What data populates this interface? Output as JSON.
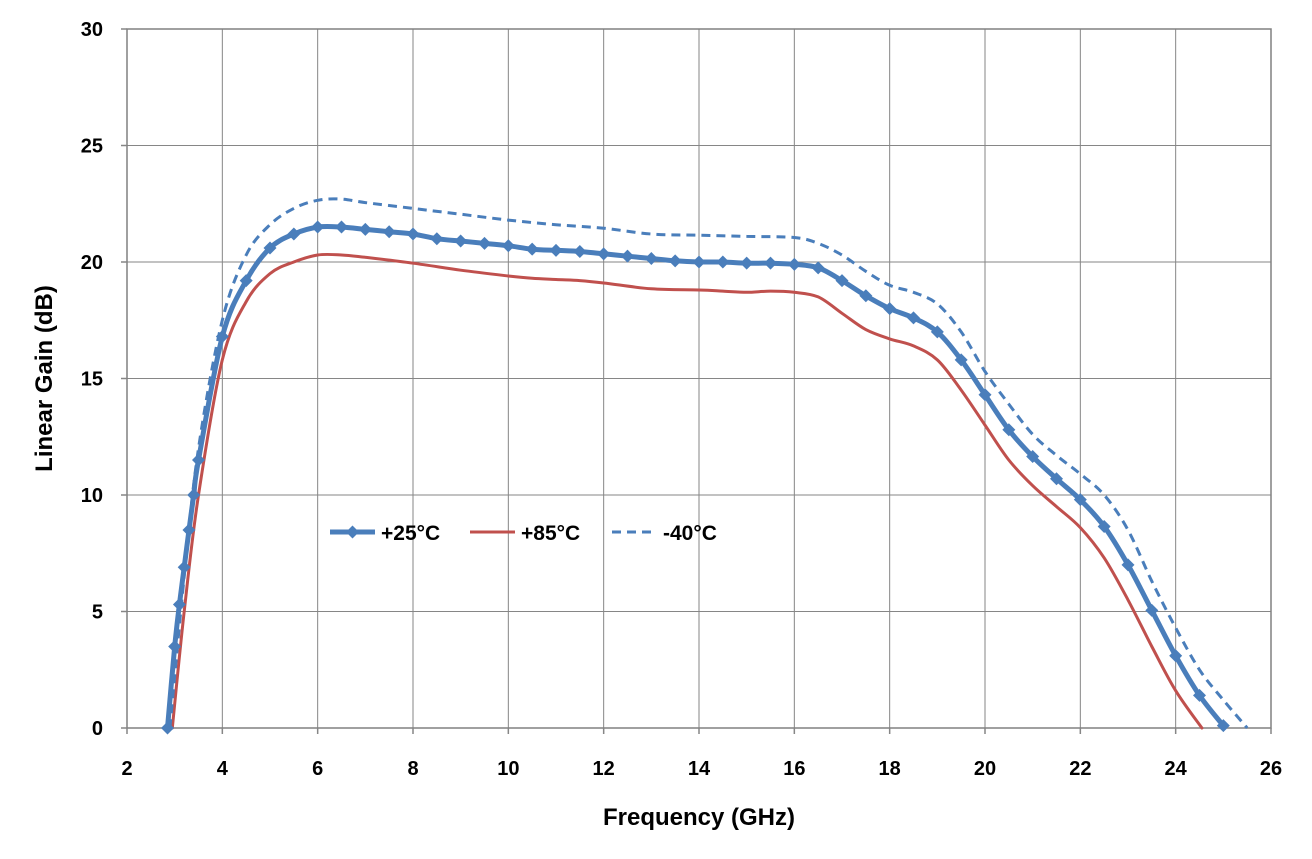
{
  "chart_data": {
    "type": "line",
    "title": "",
    "xlabel": "Frequency (GHz)",
    "ylabel": "Linear Gain (dB)",
    "xlim": [
      2,
      26
    ],
    "ylim": [
      0,
      30
    ],
    "xticks": [
      2,
      4,
      6,
      8,
      10,
      12,
      14,
      16,
      18,
      20,
      22,
      24,
      26
    ],
    "yticks": [
      0,
      5,
      10,
      15,
      20,
      25,
      30
    ],
    "grid": true,
    "legend_position": "center-left",
    "series": [
      {
        "name": "+25°C",
        "color": "#4A7EBB",
        "style": "solid-markers",
        "x": [
          2.85,
          3.0,
          3.1,
          3.2,
          3.3,
          3.4,
          3.5,
          4.0,
          4.5,
          5.0,
          5.5,
          6.0,
          6.5,
          7.0,
          7.5,
          8.0,
          8.5,
          9.0,
          9.5,
          10.0,
          10.5,
          11.0,
          11.5,
          12.0,
          12.5,
          13.0,
          13.5,
          14.0,
          14.5,
          15.0,
          15.5,
          16.0,
          16.5,
          17.0,
          17.5,
          18.0,
          18.5,
          19.0,
          19.5,
          20.0,
          20.5,
          21.0,
          21.5,
          22.0,
          22.5,
          23.0,
          23.5,
          24.0,
          24.5,
          25.0
        ],
        "y": [
          0.0,
          3.5,
          5.3,
          6.9,
          8.5,
          10.0,
          11.5,
          16.8,
          19.2,
          20.6,
          21.2,
          21.5,
          21.5,
          21.4,
          21.3,
          21.2,
          21.0,
          20.9,
          20.8,
          20.7,
          20.55,
          20.5,
          20.45,
          20.35,
          20.25,
          20.15,
          20.05,
          20.0,
          20.0,
          19.95,
          19.95,
          19.9,
          19.75,
          19.2,
          18.55,
          18.0,
          17.6,
          17.0,
          15.8,
          14.3,
          12.8,
          11.65,
          10.7,
          9.8,
          8.65,
          7.0,
          5.05,
          3.1,
          1.4,
          0.1
        ]
      },
      {
        "name": "+85°C",
        "color": "#C0504D",
        "style": "solid",
        "x": [
          2.95,
          3.2,
          3.5,
          4.0,
          4.5,
          5.0,
          5.5,
          6.0,
          6.5,
          7.0,
          8.0,
          9.0,
          10.0,
          10.5,
          11.0,
          11.5,
          12.0,
          13.0,
          14.0,
          14.5,
          15.0,
          15.5,
          16.0,
          16.5,
          17.0,
          17.5,
          18.0,
          18.5,
          19.0,
          19.5,
          20.0,
          20.5,
          21.0,
          21.5,
          22.0,
          22.5,
          23.0,
          23.5,
          24.0,
          24.55
        ],
        "y": [
          0.0,
          5.0,
          10.0,
          15.8,
          18.3,
          19.5,
          20.0,
          20.3,
          20.3,
          20.2,
          19.95,
          19.65,
          19.4,
          19.3,
          19.25,
          19.2,
          19.1,
          18.85,
          18.8,
          18.75,
          18.7,
          18.75,
          18.7,
          18.5,
          17.8,
          17.1,
          16.7,
          16.4,
          15.8,
          14.5,
          13.0,
          11.5,
          10.4,
          9.5,
          8.6,
          7.3,
          5.5,
          3.5,
          1.6,
          0.0
        ]
      },
      {
        "name": "-40°C",
        "color": "#4A7EBB",
        "style": "dashed",
        "x": [
          2.9,
          3.2,
          3.5,
          4.0,
          4.5,
          5.0,
          5.5,
          6.0,
          6.5,
          7.0,
          8.0,
          9.0,
          10.0,
          11.0,
          12.0,
          13.0,
          14.0,
          15.0,
          16.0,
          16.5,
          17.0,
          17.5,
          18.0,
          18.5,
          19.0,
          19.5,
          20.0,
          20.5,
          21.0,
          21.5,
          22.0,
          22.5,
          23.0,
          23.5,
          24.0,
          24.5,
          25.0,
          25.5
        ],
        "y": [
          0.0,
          6.5,
          12.0,
          17.5,
          20.3,
          21.6,
          22.3,
          22.65,
          22.7,
          22.55,
          22.3,
          22.05,
          21.8,
          21.6,
          21.45,
          21.2,
          21.15,
          21.1,
          21.05,
          20.8,
          20.3,
          19.6,
          19.0,
          18.7,
          18.2,
          17.0,
          15.3,
          13.9,
          12.6,
          11.7,
          10.9,
          10.0,
          8.5,
          6.3,
          4.3,
          2.5,
          1.2,
          0.0
        ]
      }
    ]
  }
}
